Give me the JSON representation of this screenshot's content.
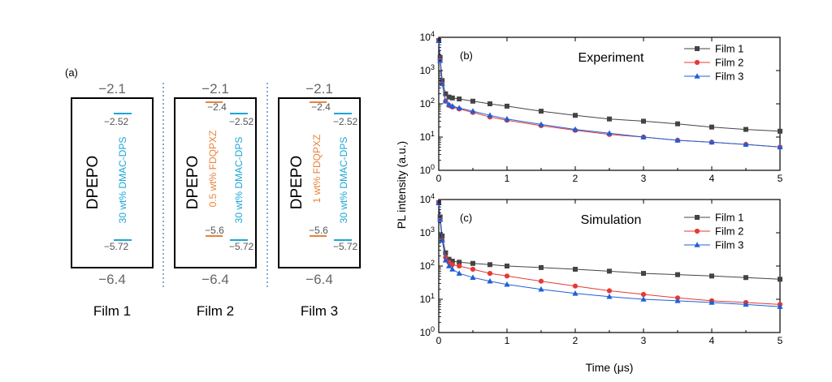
{
  "energy_diagram": {
    "panel_label": "(a)",
    "films": [
      {
        "label": "Film 1",
        "lumo": "−2.1",
        "homo": "−6.4",
        "host": "DPEPO",
        "dopants": [
          {
            "label": "30 wt% DMAC-DPS",
            "color": "#1aa7d6",
            "lumo": "−2.52",
            "homo": "−5.72"
          }
        ]
      },
      {
        "label": "Film 2",
        "lumo": "−2.1",
        "homo": "−6.4",
        "host": "DPEPO",
        "dopants": [
          {
            "label": "0.5 wt% FDQPXZ",
            "color": "#e8833a",
            "lumo": "−2.4",
            "homo": "−5.6"
          },
          {
            "label": "30 wt% DMAC-DPS",
            "color": "#1aa7d6",
            "lumo": "−2.52",
            "homo": "−5.72"
          }
        ]
      },
      {
        "label": "Film 3",
        "lumo": "−2.1",
        "homo": "−6.4",
        "host": "DPEPO",
        "dopants": [
          {
            "label": "1 wt% FDQPXZ",
            "color": "#e8833a",
            "lumo": "−2.4",
            "homo": "−5.6"
          },
          {
            "label": "30 wt% DMAC-DPS",
            "color": "#1aa7d6",
            "lumo": "−2.52",
            "homo": "−5.72"
          }
        ]
      }
    ]
  },
  "chart_data": [
    {
      "type": "scatter",
      "panel_label": "(b)",
      "title": "Experiment",
      "xlabel": "Time (μs)",
      "ylabel": "PL intensity (a.u.)",
      "xlim": [
        0,
        5
      ],
      "ylim": [
        1,
        10000
      ],
      "yscale": "log",
      "x_ticks": [
        0,
        1,
        2,
        3,
        4,
        5
      ],
      "legend_position": "top-right",
      "series": [
        {
          "name": "Film 1",
          "color": "#444444",
          "marker": "square",
          "x": [
            0,
            0.02,
            0.05,
            0.1,
            0.15,
            0.2,
            0.3,
            0.5,
            0.75,
            1,
            1.5,
            2,
            2.5,
            3,
            3.5,
            4,
            4.5,
            5
          ],
          "y": [
            8000,
            2500,
            500,
            200,
            160,
            150,
            140,
            120,
            100,
            85,
            60,
            45,
            35,
            30,
            25,
            20,
            17,
            15
          ]
        },
        {
          "name": "Film 2",
          "color": "#e53935",
          "marker": "circle",
          "x": [
            0,
            0.02,
            0.05,
            0.1,
            0.15,
            0.2,
            0.3,
            0.5,
            0.75,
            1,
            1.5,
            2,
            2.5,
            3,
            3.5,
            4,
            4.5,
            5
          ],
          "y": [
            8000,
            2000,
            400,
            120,
            90,
            80,
            70,
            55,
            40,
            32,
            22,
            16,
            12,
            10,
            8,
            7,
            6,
            5
          ]
        },
        {
          "name": "Film 3",
          "color": "#1f5fd6",
          "marker": "triangle",
          "x": [
            0,
            0.02,
            0.05,
            0.1,
            0.15,
            0.2,
            0.3,
            0.5,
            0.75,
            1,
            1.5,
            2,
            2.5,
            3,
            3.5,
            4,
            4.5,
            5
          ],
          "y": [
            8000,
            2000,
            400,
            120,
            95,
            85,
            75,
            60,
            45,
            35,
            24,
            17,
            13,
            10,
            8,
            7,
            6,
            5
          ]
        }
      ]
    },
    {
      "type": "scatter",
      "panel_label": "(c)",
      "title": "Simulation",
      "xlabel": "Time (μs)",
      "ylabel": "PL intensity (a.u.)",
      "xlim": [
        0,
        5
      ],
      "ylim": [
        1,
        10000
      ],
      "yscale": "log",
      "x_ticks": [
        0,
        1,
        2,
        3,
        4,
        5
      ],
      "legend_position": "top-right",
      "series": [
        {
          "name": "Film 1",
          "color": "#444444",
          "marker": "square",
          "x": [
            0,
            0.02,
            0.05,
            0.1,
            0.15,
            0.2,
            0.3,
            0.5,
            0.75,
            1,
            1.5,
            2,
            2.5,
            3,
            3.5,
            4,
            4.5,
            5
          ],
          "y": [
            8000,
            3000,
            800,
            250,
            160,
            140,
            130,
            120,
            110,
            100,
            90,
            80,
            70,
            60,
            55,
            50,
            45,
            40
          ]
        },
        {
          "name": "Film 2",
          "color": "#e53935",
          "marker": "circle",
          "x": [
            0,
            0.02,
            0.05,
            0.1,
            0.15,
            0.2,
            0.3,
            0.5,
            0.75,
            1,
            1.5,
            2,
            2.5,
            3,
            3.5,
            4,
            4.5,
            5
          ],
          "y": [
            8000,
            2500,
            600,
            180,
            130,
            110,
            100,
            80,
            60,
            50,
            35,
            25,
            18,
            14,
            11,
            9,
            8,
            7
          ]
        },
        {
          "name": "Film 3",
          "color": "#1f5fd6",
          "marker": "triangle",
          "x": [
            0,
            0.02,
            0.05,
            0.1,
            0.15,
            0.2,
            0.3,
            0.5,
            0.75,
            1,
            1.5,
            2,
            2.5,
            3,
            3.5,
            4,
            4.5,
            5
          ],
          "y": [
            8000,
            2500,
            600,
            150,
            100,
            80,
            60,
            45,
            35,
            28,
            20,
            15,
            12,
            10,
            9,
            8,
            7,
            6
          ]
        }
      ]
    }
  ]
}
